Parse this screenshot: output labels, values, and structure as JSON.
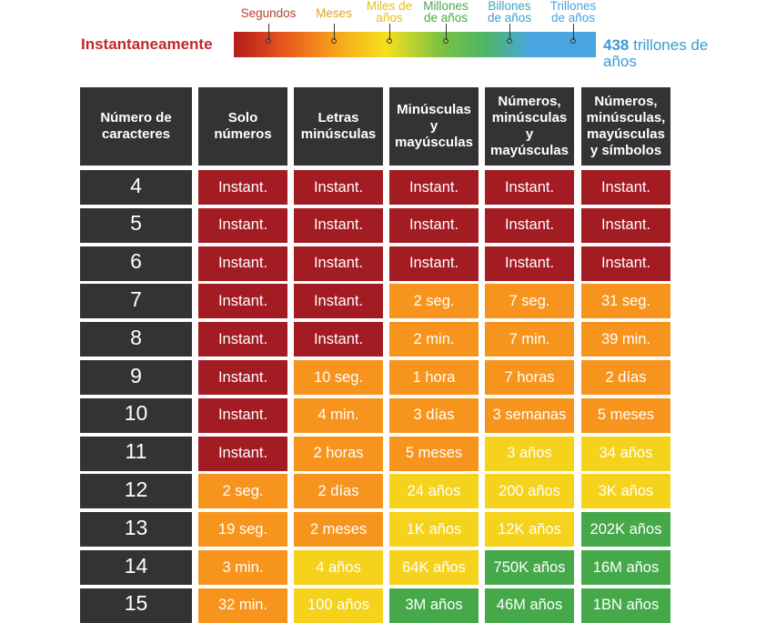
{
  "legend": {
    "left": "Instantaneamente",
    "right_number": "438",
    "right_text": "trillones de años",
    "labels": [
      {
        "text": "Segundos",
        "color": "#b5432a"
      },
      {
        "text": "Meses",
        "color": "#e8a21e"
      },
      {
        "text": "Miles de años",
        "color": "#e0c414"
      },
      {
        "text": "Millones de años",
        "color": "#4aa84a"
      },
      {
        "text": "Billones de años",
        "color": "#3ea3c4"
      },
      {
        "text": "Trillones de años",
        "color": "#4aa3e0"
      }
    ]
  },
  "table": {
    "headers": [
      "Número de caracteres",
      "Solo números",
      "Letras minúsculas",
      "Minúsculas y mayúsculas",
      "Números, minúsculas y mayúsculas",
      "Números, minúsculas, mayúsculas y símbolos"
    ],
    "rows": [
      [
        "4",
        "Instant.",
        "Instant.",
        "Instant.",
        "Instant.",
        "Instant."
      ],
      [
        "5",
        "Instant.",
        "Instant.",
        "Instant.",
        "Instant.",
        "Instant."
      ],
      [
        "6",
        "Instant.",
        "Instant.",
        "Instant.",
        "Instant.",
        "Instant."
      ],
      [
        "7",
        "Instant.",
        "Instant.",
        "2 seg.",
        "7 seg.",
        "31 seg."
      ],
      [
        "8",
        "Instant.",
        "Instant.",
        "2 min.",
        "7 min.",
        "39 min."
      ],
      [
        "9",
        "Instant.",
        "10 seg.",
        "1 hora",
        "7 horas",
        "2 días"
      ],
      [
        "10",
        "Instant.",
        "4 min.",
        "3 días",
        "3 semanas",
        "5 meses"
      ],
      [
        "11",
        "Instant.",
        "2 horas",
        "5 meses",
        "3 años",
        "34 años"
      ],
      [
        "12",
        "2 seg.",
        "2 días",
        "24 años",
        "200 años",
        "3K años"
      ],
      [
        "13",
        "19 seg.",
        "2 meses",
        "1K años",
        "12K años",
        "202K años"
      ],
      [
        "14",
        "3 min.",
        "4 años",
        "64K años",
        "750K años",
        "16M años"
      ],
      [
        "15",
        "32 min.",
        "100 años",
        "3M años",
        "46M años",
        "1BN años"
      ]
    ],
    "colors": [
      [
        "#a31b23",
        "#a31b23",
        "#a31b23",
        "#a31b23",
        "#a31b23"
      ],
      [
        "#a31b23",
        "#a31b23",
        "#a31b23",
        "#a31b23",
        "#a31b23"
      ],
      [
        "#a31b23",
        "#a31b23",
        "#a31b23",
        "#a31b23",
        "#a31b23"
      ],
      [
        "#a31b23",
        "#a31b23",
        "#f7941d",
        "#f7941d",
        "#f7941d"
      ],
      [
        "#a31b23",
        "#a31b23",
        "#f7941d",
        "#f7941d",
        "#f7941d"
      ],
      [
        "#a31b23",
        "#f7941d",
        "#f7941d",
        "#f7941d",
        "#f7941d"
      ],
      [
        "#a31b23",
        "#f7941d",
        "#f7941d",
        "#f7941d",
        "#f7941d"
      ],
      [
        "#a31b23",
        "#f7941d",
        "#f7941d",
        "#f5d21c",
        "#f5d21c"
      ],
      [
        "#f7941d",
        "#f7941d",
        "#f5d21c",
        "#f5d21c",
        "#f5d21c"
      ],
      [
        "#f7941d",
        "#f7941d",
        "#f5d21c",
        "#f5d21c",
        "#45a94a"
      ],
      [
        "#f7941d",
        "#f5d21c",
        "#f5d21c",
        "#45a94a",
        "#45a94a"
      ],
      [
        "#f7941d",
        "#f5d21c",
        "#45a94a",
        "#45a94a",
        "#45a94a"
      ]
    ]
  }
}
